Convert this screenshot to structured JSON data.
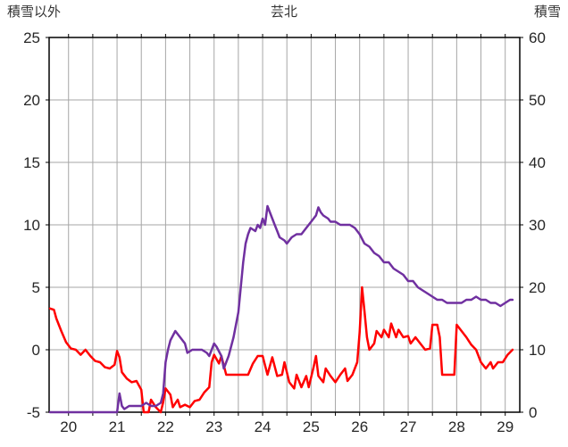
{
  "chart_data": {
    "type": "line",
    "title": "芸北",
    "grid_color": "#a6a6a6",
    "border_color": "#000000",
    "x_axis": {
      "min": 19.6,
      "max": 29.3,
      "ticks": [
        20,
        21,
        22,
        23,
        24,
        25,
        26,
        27,
        28,
        29
      ],
      "gridline_step": 0.5
    },
    "left_axis": {
      "label": "積雪以外",
      "min": -5,
      "max": 25,
      "ticks": [
        -5,
        0,
        5,
        10,
        15,
        20,
        25
      ]
    },
    "right_axis": {
      "label": "積雪",
      "min": 0,
      "max": 60,
      "ticks": [
        0,
        10,
        20,
        30,
        40,
        50,
        60
      ]
    },
    "legend": "off",
    "series": [
      {
        "id": "other-than-snow-line",
        "name": "積雪以外",
        "axis": "left",
        "color": "#ff0000",
        "points": [
          [
            19.62,
            3.3
          ],
          [
            19.7,
            3.2
          ],
          [
            19.75,
            2.5
          ],
          [
            19.85,
            1.5
          ],
          [
            19.95,
            0.6
          ],
          [
            20.05,
            0.1
          ],
          [
            20.15,
            0.0
          ],
          [
            20.25,
            -0.4
          ],
          [
            20.35,
            0.0
          ],
          [
            20.45,
            -0.5
          ],
          [
            20.55,
            -0.9
          ],
          [
            20.65,
            -1.0
          ],
          [
            20.75,
            -1.4
          ],
          [
            20.85,
            -1.5
          ],
          [
            20.95,
            -1.2
          ],
          [
            21.0,
            -0.1
          ],
          [
            21.05,
            -0.6
          ],
          [
            21.1,
            -1.8
          ],
          [
            21.2,
            -2.3
          ],
          [
            21.3,
            -2.6
          ],
          [
            21.4,
            -2.5
          ],
          [
            21.5,
            -3.2
          ],
          [
            21.55,
            -5.0
          ],
          [
            21.65,
            -5.0
          ],
          [
            21.7,
            -4.0
          ],
          [
            21.8,
            -4.6
          ],
          [
            21.9,
            -5.0
          ],
          [
            21.95,
            -4.2
          ],
          [
            22.0,
            -3.1
          ],
          [
            22.1,
            -3.6
          ],
          [
            22.15,
            -4.6
          ],
          [
            22.25,
            -4.0
          ],
          [
            22.3,
            -4.6
          ],
          [
            22.4,
            -4.4
          ],
          [
            22.5,
            -4.6
          ],
          [
            22.6,
            -4.1
          ],
          [
            22.7,
            -4.0
          ],
          [
            22.8,
            -3.4
          ],
          [
            22.9,
            -3.0
          ],
          [
            22.95,
            -1.0
          ],
          [
            23.0,
            -0.4
          ],
          [
            23.1,
            -1.1
          ],
          [
            23.15,
            -0.5
          ],
          [
            23.25,
            -2.0
          ],
          [
            23.4,
            -2.0
          ],
          [
            23.55,
            -2.0
          ],
          [
            23.7,
            -2.0
          ],
          [
            23.8,
            -1.1
          ],
          [
            23.9,
            -0.5
          ],
          [
            24.0,
            -0.5
          ],
          [
            24.1,
            -2.0
          ],
          [
            24.2,
            -0.6
          ],
          [
            24.3,
            -2.1
          ],
          [
            24.4,
            -2.0
          ],
          [
            24.45,
            -1.0
          ],
          [
            24.55,
            -2.6
          ],
          [
            24.65,
            -3.1
          ],
          [
            24.7,
            -2.0
          ],
          [
            24.8,
            -3.0
          ],
          [
            24.9,
            -2.1
          ],
          [
            24.95,
            -3.0
          ],
          [
            25.05,
            -1.4
          ],
          [
            25.1,
            -0.5
          ],
          [
            25.15,
            -2.1
          ],
          [
            25.25,
            -2.6
          ],
          [
            25.3,
            -1.5
          ],
          [
            25.4,
            -2.1
          ],
          [
            25.5,
            -2.6
          ],
          [
            25.6,
            -2.0
          ],
          [
            25.7,
            -1.5
          ],
          [
            25.75,
            -2.5
          ],
          [
            25.85,
            -2.0
          ],
          [
            25.95,
            -1.0
          ],
          [
            26.0,
            1.4
          ],
          [
            26.05,
            5.0
          ],
          [
            26.1,
            3.1
          ],
          [
            26.15,
            1.0
          ],
          [
            26.2,
            0.0
          ],
          [
            26.3,
            0.5
          ],
          [
            26.35,
            1.5
          ],
          [
            26.45,
            1.0
          ],
          [
            26.5,
            1.6
          ],
          [
            26.6,
            1.0
          ],
          [
            26.65,
            2.1
          ],
          [
            26.75,
            1.0
          ],
          [
            26.8,
            1.6
          ],
          [
            26.9,
            1.0
          ],
          [
            27.0,
            1.1
          ],
          [
            27.05,
            0.5
          ],
          [
            27.15,
            1.0
          ],
          [
            27.25,
            0.5
          ],
          [
            27.35,
            0.0
          ],
          [
            27.45,
            0.1
          ],
          [
            27.5,
            2.0
          ],
          [
            27.6,
            2.0
          ],
          [
            27.65,
            1.0
          ],
          [
            27.7,
            -2.0
          ],
          [
            27.85,
            -2.0
          ],
          [
            27.95,
            -2.0
          ],
          [
            28.0,
            2.0
          ],
          [
            28.1,
            1.5
          ],
          [
            28.2,
            1.0
          ],
          [
            28.3,
            0.4
          ],
          [
            28.4,
            0.0
          ],
          [
            28.5,
            -1.0
          ],
          [
            28.6,
            -1.5
          ],
          [
            28.7,
            -1.0
          ],
          [
            28.75,
            -1.5
          ],
          [
            28.85,
            -1.0
          ],
          [
            28.95,
            -1.0
          ],
          [
            29.05,
            -0.4
          ],
          [
            29.15,
            0.0
          ]
        ]
      },
      {
        "id": "snow-depth-line",
        "name": "積雪",
        "axis": "right",
        "color": "#7030a0",
        "points": [
          [
            19.62,
            0
          ],
          [
            20.0,
            0
          ],
          [
            20.5,
            0
          ],
          [
            20.9,
            0
          ],
          [
            21.0,
            0
          ],
          [
            21.05,
            3
          ],
          [
            21.1,
            1
          ],
          [
            21.15,
            0.5
          ],
          [
            21.25,
            1
          ],
          [
            21.35,
            1
          ],
          [
            21.5,
            1
          ],
          [
            21.6,
            1.5
          ],
          [
            21.7,
            1
          ],
          [
            21.8,
            1
          ],
          [
            21.9,
            1.5
          ],
          [
            21.95,
            3
          ],
          [
            22.0,
            8
          ],
          [
            22.05,
            10
          ],
          [
            22.1,
            11.5
          ],
          [
            22.2,
            13
          ],
          [
            22.3,
            12
          ],
          [
            22.4,
            11
          ],
          [
            22.45,
            9.5
          ],
          [
            22.55,
            10
          ],
          [
            22.65,
            10
          ],
          [
            22.75,
            10
          ],
          [
            22.85,
            9.5
          ],
          [
            22.9,
            9
          ],
          [
            23.0,
            11
          ],
          [
            23.05,
            10.5
          ],
          [
            23.15,
            9
          ],
          [
            23.2,
            7
          ],
          [
            23.3,
            9
          ],
          [
            23.4,
            12
          ],
          [
            23.5,
            16
          ],
          [
            23.55,
            20
          ],
          [
            23.6,
            24
          ],
          [
            23.65,
            27
          ],
          [
            23.7,
            28.5
          ],
          [
            23.75,
            29.5
          ],
          [
            23.85,
            29
          ],
          [
            23.9,
            30
          ],
          [
            23.95,
            29.5
          ],
          [
            24.0,
            31
          ],
          [
            24.05,
            30
          ],
          [
            24.1,
            33
          ],
          [
            24.15,
            32
          ],
          [
            24.2,
            31
          ],
          [
            24.25,
            30
          ],
          [
            24.3,
            29
          ],
          [
            24.35,
            28
          ],
          [
            24.45,
            27.5
          ],
          [
            24.5,
            27
          ],
          [
            24.6,
            28
          ],
          [
            24.7,
            28.5
          ],
          [
            24.8,
            28.5
          ],
          [
            24.9,
            29.5
          ],
          [
            25.0,
            30.5
          ],
          [
            25.05,
            31
          ],
          [
            25.1,
            31.5
          ],
          [
            25.15,
            32.8
          ],
          [
            25.2,
            32
          ],
          [
            25.25,
            31.5
          ],
          [
            25.35,
            31
          ],
          [
            25.4,
            30.5
          ],
          [
            25.5,
            30.5
          ],
          [
            25.6,
            30
          ],
          [
            25.7,
            30
          ],
          [
            25.8,
            30
          ],
          [
            25.9,
            29.5
          ],
          [
            25.95,
            29
          ],
          [
            26.0,
            28.5
          ],
          [
            26.1,
            27
          ],
          [
            26.2,
            26.5
          ],
          [
            26.3,
            25.5
          ],
          [
            26.4,
            25
          ],
          [
            26.5,
            24
          ],
          [
            26.6,
            24
          ],
          [
            26.7,
            23
          ],
          [
            26.8,
            22.5
          ],
          [
            26.9,
            22
          ],
          [
            27.0,
            21
          ],
          [
            27.1,
            21
          ],
          [
            27.2,
            20
          ],
          [
            27.3,
            19.5
          ],
          [
            27.4,
            19
          ],
          [
            27.5,
            18.5
          ],
          [
            27.6,
            18
          ],
          [
            27.7,
            18
          ],
          [
            27.8,
            17.5
          ],
          [
            27.9,
            17.5
          ],
          [
            28.0,
            17.5
          ],
          [
            28.1,
            17.5
          ],
          [
            28.2,
            18
          ],
          [
            28.3,
            18
          ],
          [
            28.4,
            18.5
          ],
          [
            28.5,
            18
          ],
          [
            28.6,
            18
          ],
          [
            28.7,
            17.5
          ],
          [
            28.8,
            17.5
          ],
          [
            28.9,
            17
          ],
          [
            29.0,
            17.5
          ],
          [
            29.1,
            18
          ],
          [
            29.15,
            18
          ]
        ]
      }
    ]
  }
}
